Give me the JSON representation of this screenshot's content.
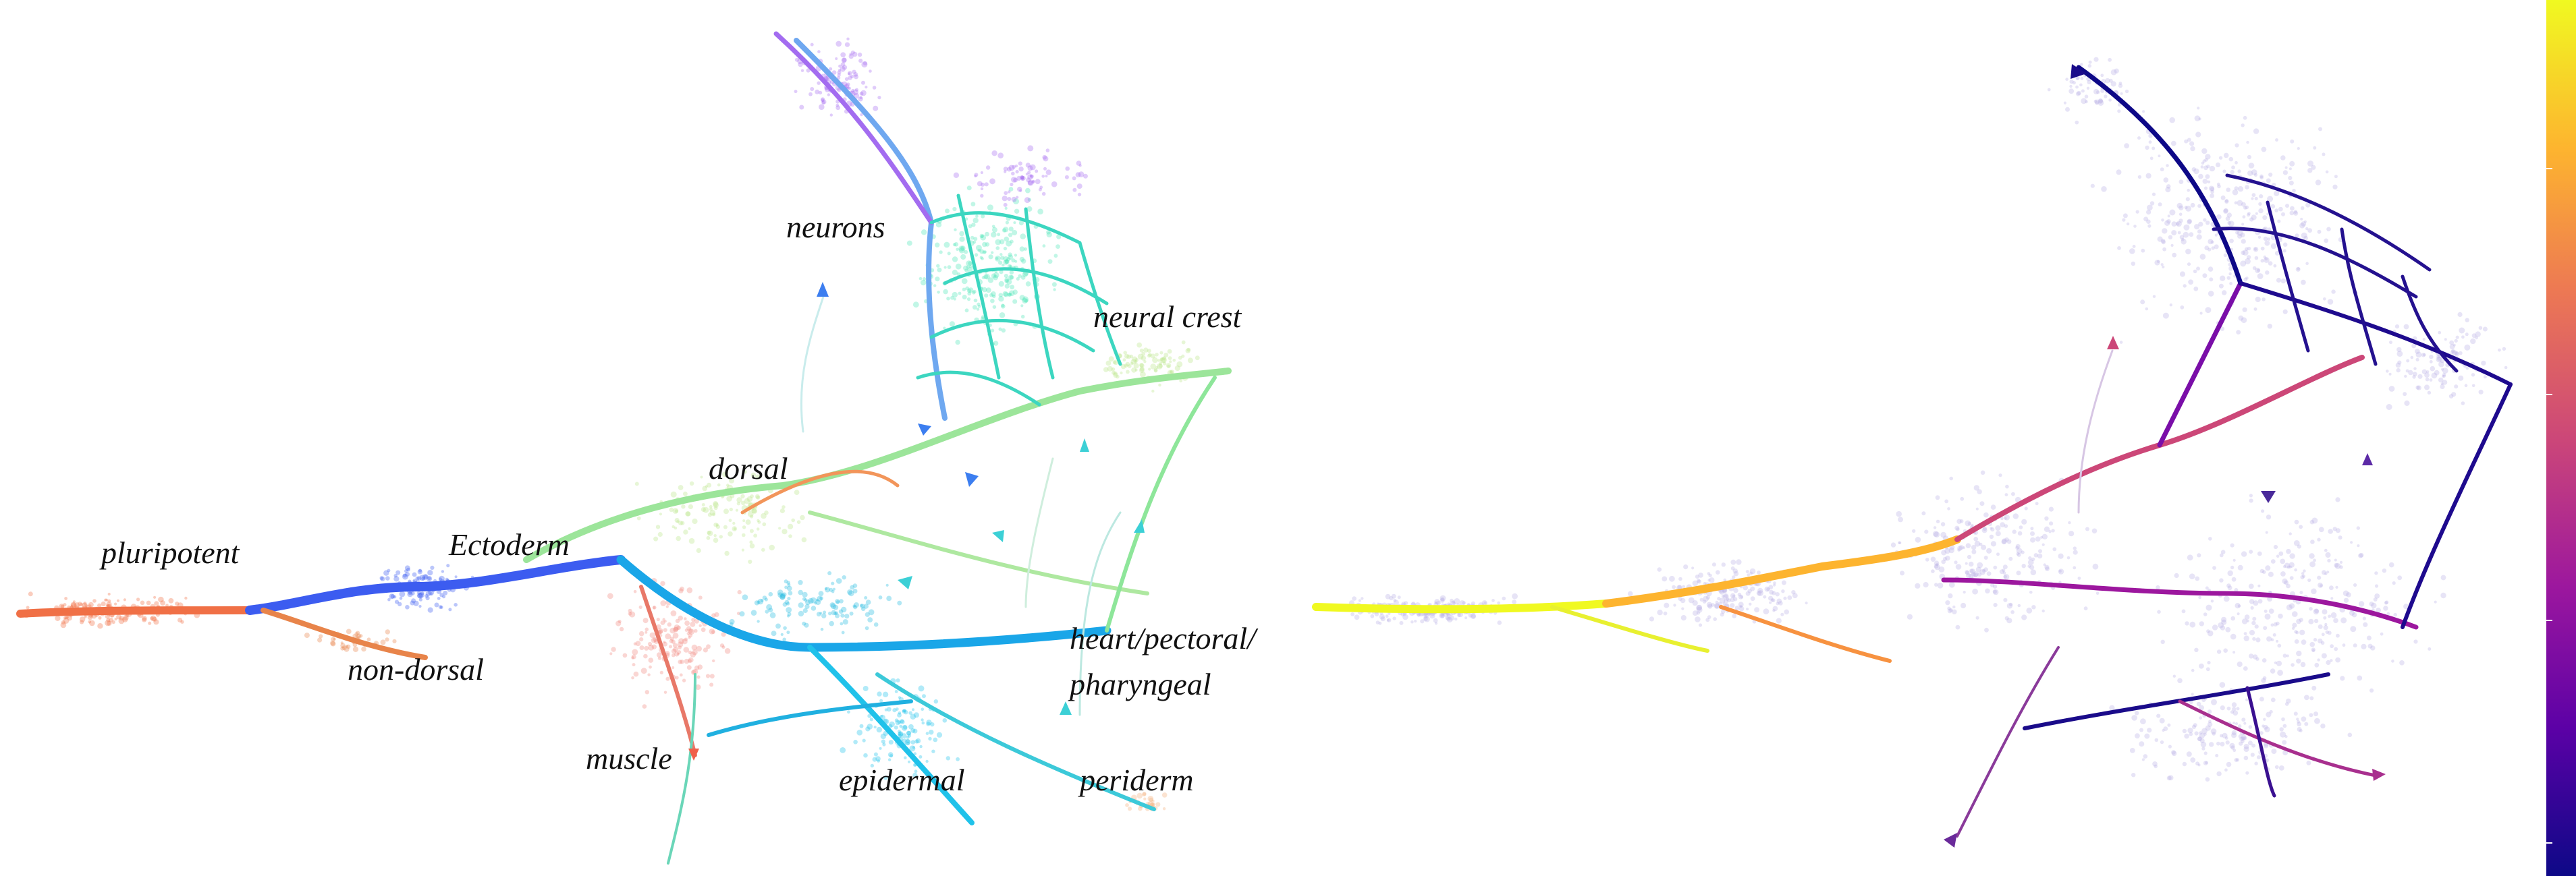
{
  "left_panel": {
    "labels": [
      {
        "key": "pluripotent",
        "text": "pluripotent"
      },
      {
        "key": "ectoderm",
        "text": "Ectoderm"
      },
      {
        "key": "non_dorsal",
        "text": "non-dorsal"
      },
      {
        "key": "dorsal",
        "text": "dorsal"
      },
      {
        "key": "neurons",
        "text": "neurons"
      },
      {
        "key": "neural_crest",
        "text": "neural crest"
      },
      {
        "key": "heart_1",
        "text": "heart/pectoral/"
      },
      {
        "key": "heart_2",
        "text": "pharyngeal"
      },
      {
        "key": "muscle",
        "text": "muscle"
      },
      {
        "key": "epidermal",
        "text": "epidermal"
      },
      {
        "key": "periderm",
        "text": "periderm"
      }
    ],
    "colors": {
      "pluripotent": "#f07046",
      "ectoderm": "#3c5cf0",
      "non_dorsal": "#e8844a",
      "dorsal": "#b9e58a",
      "neurons": "#a66cf0",
      "neural_crest": "#4ce6b6",
      "heart": "#21b9e0",
      "muscle": "#f08a80",
      "epidermal": "#20c2ea",
      "periderm": "#f4b07a"
    }
  },
  "right_panel": {
    "colormap": [
      "#0d0887",
      "#5c01a6",
      "#9c179e",
      "#cc4778",
      "#ed7953",
      "#fdb42f",
      "#f0f921"
    ]
  }
}
